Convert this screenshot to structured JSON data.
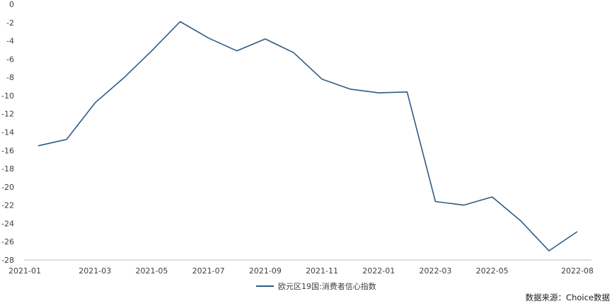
{
  "chart_data": {
    "type": "line",
    "title": "",
    "xlabel": "",
    "ylabel": "",
    "x": [
      "2021-01",
      "2021-02",
      "2021-03",
      "2021-04",
      "2021-05",
      "2021-06",
      "2021-07",
      "2021-08",
      "2021-09",
      "2021-10",
      "2021-11",
      "2021-12",
      "2022-01",
      "2022-02",
      "2022-03",
      "2022-04",
      "2022-05",
      "2022-06",
      "2022-07",
      "2022-08"
    ],
    "x_tick_labels": [
      "2021-01",
      "2021-03",
      "2021-05",
      "2021-07",
      "2021-09",
      "2021-11",
      "2022-01",
      "2022-03",
      "2022-05",
      "2022-08"
    ],
    "y_ticks": [
      0,
      -2,
      -4,
      -6,
      -8,
      -10,
      -12,
      -14,
      -16,
      -18,
      -20,
      -22,
      -24,
      -26,
      -28
    ],
    "ylim": [
      -28,
      0
    ],
    "grid": false,
    "legend_position": "bottom-center",
    "series": [
      {
        "name": "欧元区19国:消费者信心指数",
        "color": "#2f5b84",
        "values": [
          -15.5,
          -14.8,
          -10.8,
          -8.1,
          -5.1,
          -1.9,
          -3.7,
          -5.1,
          -3.8,
          -5.3,
          -8.2,
          -9.3,
          -9.7,
          -9.6,
          -21.6,
          -22.0,
          -21.1,
          -23.7,
          -27.0,
          -24.9
        ]
      }
    ]
  },
  "source_label": "数据来源：Choice数据"
}
